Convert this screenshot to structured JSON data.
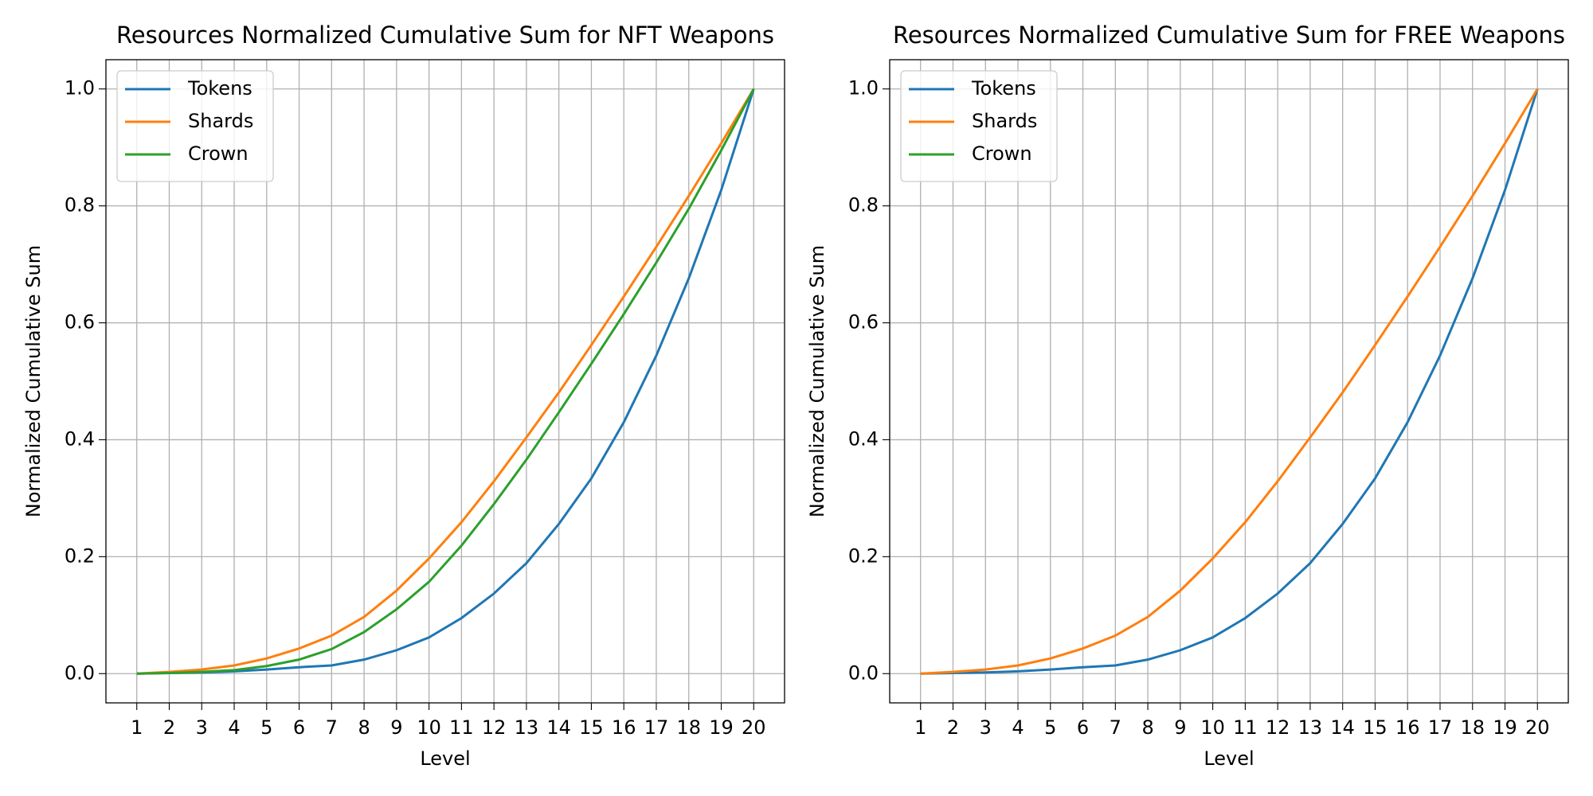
{
  "chart_data": [
    {
      "type": "line",
      "title": "Resources Normalized Cumulative Sum for NFT Weapons",
      "xlabel": "Level",
      "ylabel": "Normalized Cumulative Sum",
      "x": [
        1,
        2,
        3,
        4,
        5,
        6,
        7,
        8,
        9,
        10,
        11,
        12,
        13,
        14,
        15,
        16,
        17,
        18,
        19,
        20
      ],
      "series": [
        {
          "name": "Tokens",
          "color": "#1f77b4",
          "values": [
            0,
            0.001,
            0.002,
            0.004,
            0.007,
            0.011,
            0.014,
            0.024,
            0.04,
            0.062,
            0.095,
            0.137,
            0.189,
            0.256,
            0.334,
            0.43,
            0.544,
            0.676,
            0.827,
            1.0
          ]
        },
        {
          "name": "Shards",
          "color": "#ff7f0e",
          "values": [
            0,
            0.003,
            0.007,
            0.014,
            0.026,
            0.043,
            0.065,
            0.097,
            0.142,
            0.197,
            0.259,
            0.329,
            0.404,
            0.481,
            0.562,
            0.645,
            0.73,
            0.817,
            0.907,
            1.0
          ]
        },
        {
          "name": "Crown",
          "color": "#2ca02c",
          "values": [
            0,
            0.001,
            0.003,
            0.006,
            0.013,
            0.024,
            0.042,
            0.071,
            0.11,
            0.157,
            0.219,
            0.29,
            0.366,
            0.447,
            0.53,
            0.615,
            0.703,
            0.795,
            0.895,
            1.0
          ]
        }
      ],
      "xlim": [
        0.05,
        20.95
      ],
      "xticks": [
        1,
        2,
        3,
        4,
        5,
        6,
        7,
        8,
        9,
        10,
        11,
        12,
        13,
        14,
        15,
        16,
        17,
        18,
        19,
        20
      ],
      "ylim": [
        -0.05,
        1.05
      ],
      "yticks": [
        {
          "value": 0,
          "label": "0.0"
        },
        0.2,
        0.4,
        0.6,
        0.8,
        {
          "value": 1,
          "label": "1.0"
        }
      ],
      "grid": true,
      "legend": "upper left"
    },
    {
      "type": "line",
      "title": "Resources Normalized Cumulative Sum for FREE Weapons",
      "xlabel": "Level",
      "ylabel": "Normalized Cumulative Sum",
      "x": [
        1,
        2,
        3,
        4,
        5,
        6,
        7,
        8,
        9,
        10,
        11,
        12,
        13,
        14,
        15,
        16,
        17,
        18,
        19,
        20
      ],
      "series": [
        {
          "name": "Tokens",
          "color": "#1f77b4",
          "values": [
            0,
            0.001,
            0.002,
            0.004,
            0.007,
            0.011,
            0.014,
            0.024,
            0.04,
            0.062,
            0.095,
            0.137,
            0.189,
            0.256,
            0.334,
            0.43,
            0.544,
            0.676,
            0.827,
            1.0
          ]
        },
        {
          "name": "Shards",
          "color": "#ff7f0e",
          "values": [
            0,
            0.003,
            0.007,
            0.014,
            0.026,
            0.043,
            0.065,
            0.097,
            0.142,
            0.197,
            0.259,
            0.329,
            0.404,
            0.481,
            0.562,
            0.645,
            0.73,
            0.817,
            0.907,
            1.0
          ]
        },
        {
          "name": "Crown",
          "color": "#2ca02c",
          "values": [
            null,
            null,
            null,
            null,
            null,
            null,
            null,
            null,
            null,
            null,
            null,
            null,
            null,
            null,
            null,
            null,
            null,
            null,
            null,
            null
          ]
        }
      ],
      "xlim": [
        0.05,
        20.95
      ],
      "xticks": [
        1,
        2,
        3,
        4,
        5,
        6,
        7,
        8,
        9,
        10,
        11,
        12,
        13,
        14,
        15,
        16,
        17,
        18,
        19,
        20
      ],
      "ylim": [
        -0.05,
        1.05
      ],
      "yticks": [
        {
          "value": 0,
          "label": "0.0"
        },
        0.2,
        0.4,
        0.6,
        0.8,
        {
          "value": 1,
          "label": "1.0"
        }
      ],
      "grid": true,
      "legend": "upper left"
    }
  ]
}
